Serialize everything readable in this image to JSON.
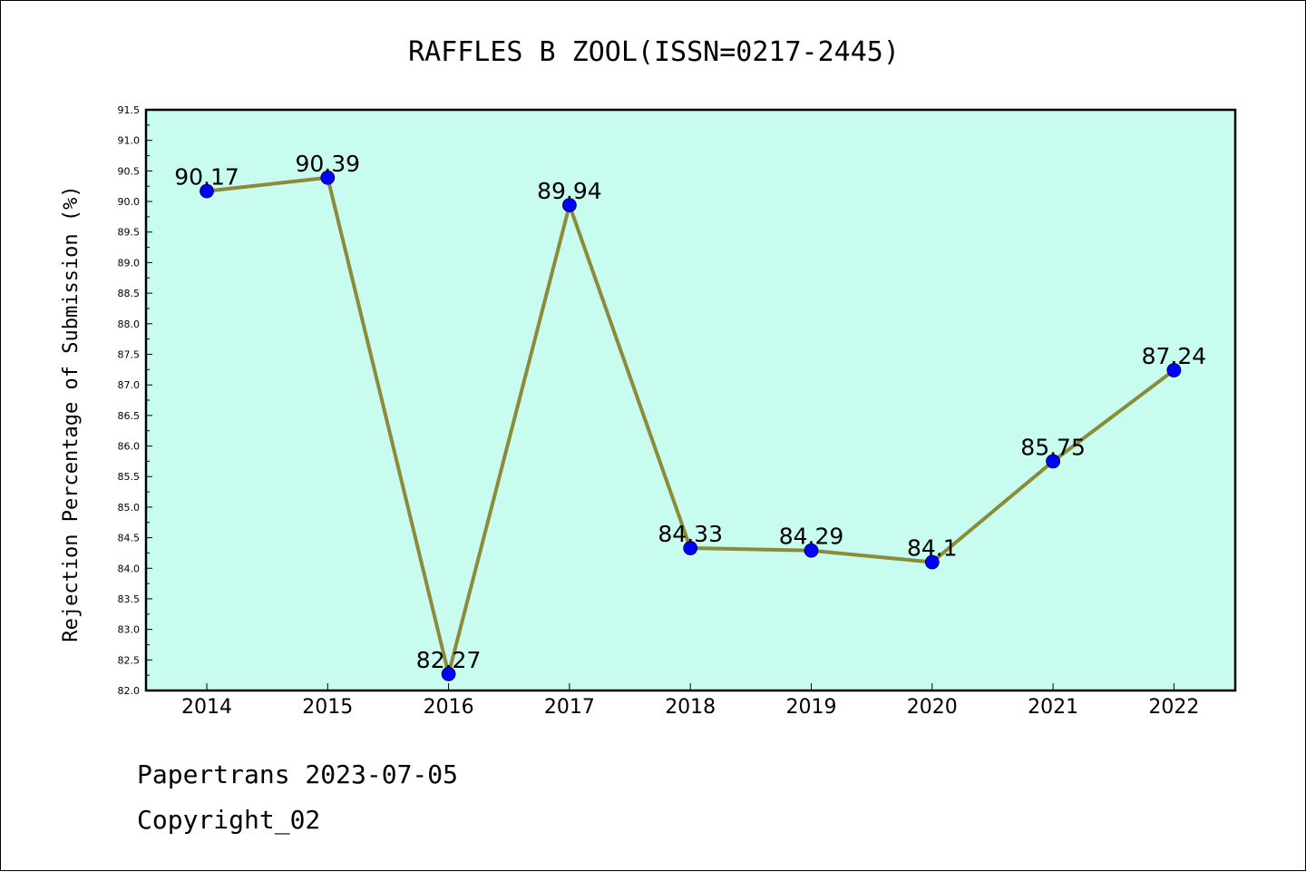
{
  "chart_data": {
    "type": "line",
    "title": "RAFFLES B ZOOL(ISSN=0217-2445)",
    "xlabel": "",
    "ylabel": "Rejection Percentage of Submission (%)",
    "categories": [
      "2014",
      "2015",
      "2016",
      "2017",
      "2018",
      "2019",
      "2020",
      "2021",
      "2022"
    ],
    "values": [
      90.17,
      90.39,
      82.27,
      89.94,
      84.33,
      84.29,
      84.1,
      85.75,
      87.24
    ],
    "data_labels": [
      "90.17",
      "90.39",
      "82.27",
      "89.94",
      "84.33",
      "84.29",
      "84.1",
      "85.75",
      "87.24"
    ],
    "ylim": [
      82.0,
      91.5
    ],
    "yticks": [
      "82.0",
      "82.5",
      "83.0",
      "83.5",
      "84.0",
      "84.5",
      "85.0",
      "85.5",
      "86.0",
      "86.5",
      "87.0",
      "87.5",
      "88.0",
      "88.5",
      "89.0",
      "89.5",
      "90.0",
      "90.5",
      "91.0",
      "91.5"
    ],
    "grid": false,
    "legend": "none",
    "colors": {
      "plot_background": "#c8fcee",
      "line": "#8b8b3a",
      "marker": "#0000ff"
    }
  },
  "footer": {
    "line1": "Papertrans 2023-07-05",
    "line2": "Copyright_02"
  }
}
